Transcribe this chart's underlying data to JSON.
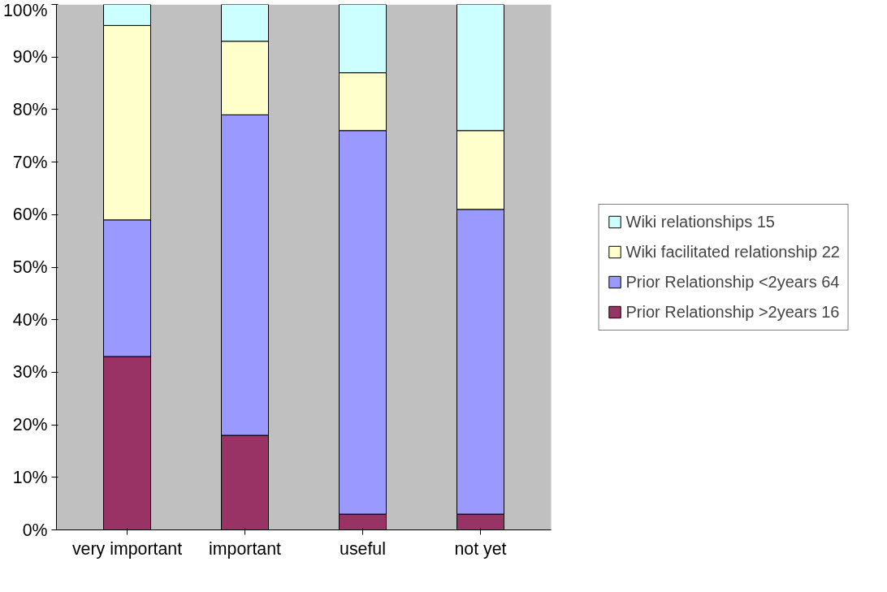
{
  "chart_data": {
    "type": "bar",
    "stacked": true,
    "categories": [
      "very important",
      "important",
      "useful",
      "not yet"
    ],
    "series": [
      {
        "name": "Prior Relationship >2years 16",
        "color": "#993366",
        "values": [
          33,
          18,
          3,
          3
        ]
      },
      {
        "name": "Prior Relationship <2years 64",
        "color": "#9999ff",
        "values": [
          26,
          61,
          73,
          58
        ]
      },
      {
        "name": "Wiki facilitated relationship 22",
        "color": "#ffffcc",
        "values": [
          37,
          14,
          11,
          15
        ]
      },
      {
        "name": "Wiki relationships 15",
        "color": "#ccffff",
        "values": [
          4,
          7,
          13,
          24
        ]
      }
    ],
    "ylim": [
      0,
      100
    ],
    "yticks": [
      {
        "value": 0,
        "label": "0%"
      },
      {
        "value": 10,
        "label": "10%"
      },
      {
        "value": 20,
        "label": "20%"
      },
      {
        "value": 30,
        "label": "30%"
      },
      {
        "value": 40,
        "label": "40%"
      },
      {
        "value": 50,
        "label": "50%"
      },
      {
        "value": 60,
        "label": "60%"
      },
      {
        "value": 70,
        "label": "70%"
      },
      {
        "value": 80,
        "label": "80%"
      },
      {
        "value": 90,
        "label": "90%"
      },
      {
        "value": 100,
        "label": "100%"
      }
    ],
    "grid": false,
    "legend": "right"
  }
}
